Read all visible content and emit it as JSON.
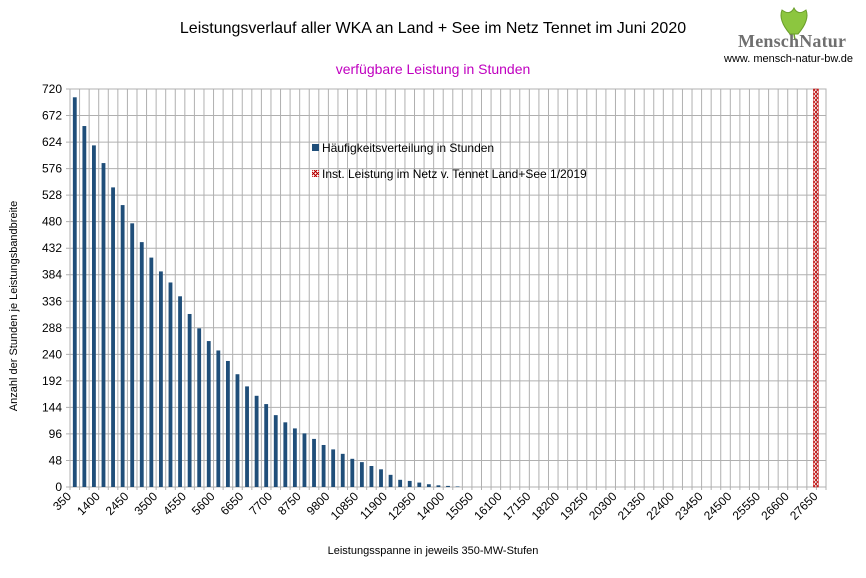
{
  "header": {
    "title": "Leistungsverlauf aller WKA an Land + See im Netz Tennet im Juni 2020",
    "subtitle": "verfügbare Leistung in Stunden"
  },
  "logo": {
    "name": "MenschNatur",
    "url": "www. mensch-natur-bw.de",
    "icon": "ginkgo-leaf-icon"
  },
  "colors": {
    "bar": "#1f4e79",
    "grid": "#b0b0b0",
    "subtitle": "#c000c0",
    "hatch": "#c00000"
  },
  "chart_data": {
    "type": "bar",
    "ylabel": "Anzahl der Stunden je Leistungsbandbreite",
    "xlabel": "Leistungsspanne in jeweils 350-MW-Stufen",
    "ylim": [
      0,
      720
    ],
    "yticks": [
      0,
      48,
      96,
      144,
      192,
      240,
      288,
      336,
      384,
      432,
      480,
      528,
      576,
      624,
      672,
      720
    ],
    "xticks": [
      "350",
      "1400",
      "2450",
      "3500",
      "4550",
      "5600",
      "6650",
      "7700",
      "8750",
      "9800",
      "10850",
      "11900",
      "12950",
      "14000",
      "15050",
      "16100",
      "17150",
      "18200",
      "19250",
      "20300",
      "21350",
      "22400",
      "23450",
      "24500",
      "25550",
      "26600",
      "27650"
    ],
    "category_step": 350,
    "category_start": 350,
    "category_count": 79,
    "grid": true,
    "legend_position": "inside-top-center",
    "series": [
      {
        "name": "Häufigkeitsverteilung in Stunden",
        "values": [
          705,
          653,
          618,
          586,
          542,
          510,
          477,
          443,
          415,
          390,
          370,
          345,
          313,
          287,
          264,
          247,
          228,
          204,
          182,
          165,
          150,
          130,
          117,
          106,
          97,
          87,
          76,
          68,
          60,
          51,
          45,
          38,
          32,
          22,
          13,
          11,
          8,
          5,
          3,
          2,
          1,
          0,
          0,
          0,
          0,
          0,
          0,
          0,
          0,
          0,
          0,
          0,
          0,
          0,
          0,
          0,
          0,
          0,
          0,
          0,
          0,
          0,
          0,
          0,
          0,
          0,
          0,
          0,
          0,
          0,
          0,
          0,
          0,
          0,
          0,
          0,
          0,
          0,
          0
        ]
      },
      {
        "name": "Inst. Leistung im Netz v. Tennet  Land+See 1/2019",
        "x": 27650,
        "value": 720
      }
    ]
  }
}
